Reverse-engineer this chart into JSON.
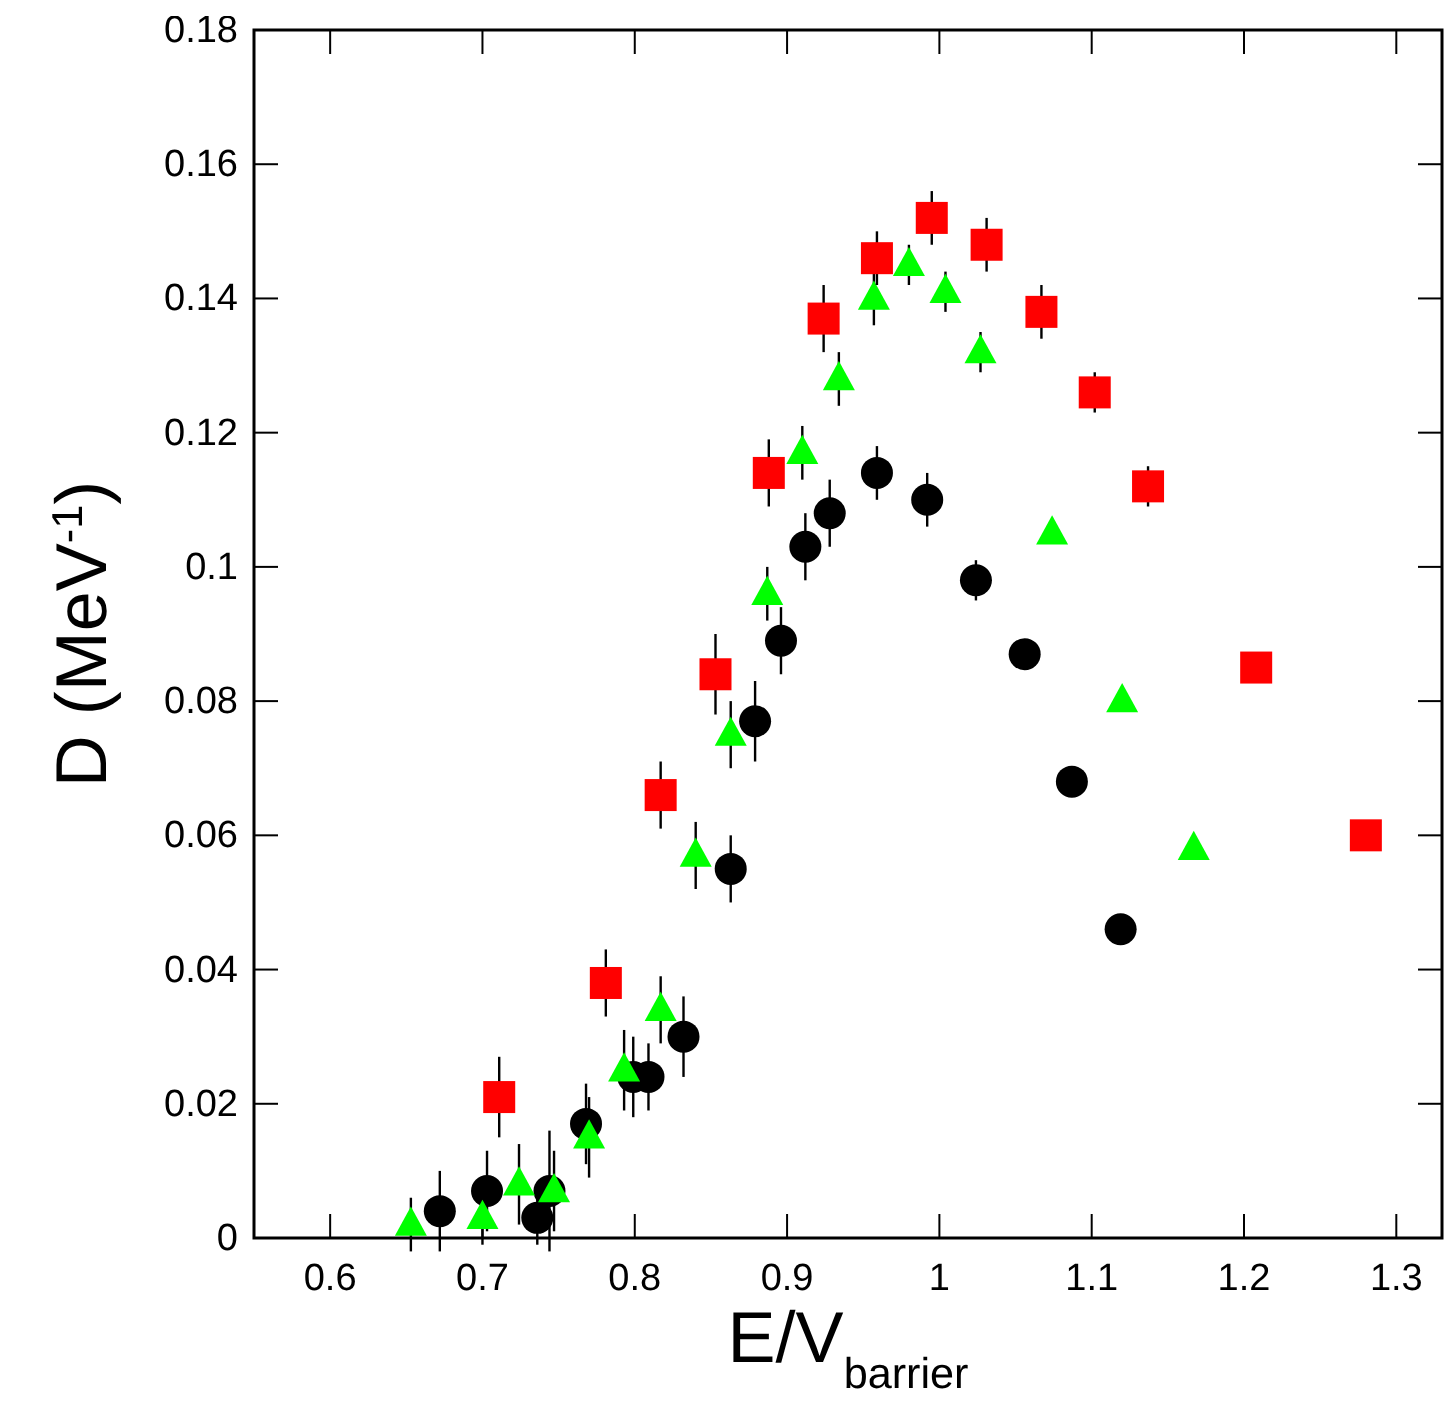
{
  "chart_data": {
    "type": "scatter",
    "xlabel": "E/V$_{barrier}$",
    "ylabel": "D (MeV$^{-1}$)",
    "xlim": [
      0.55,
      1.33
    ],
    "ylim": [
      0,
      0.18
    ],
    "xticks": [
      0.6,
      0.7,
      0.8,
      0.9,
      1,
      1.1,
      1.2,
      1.3
    ],
    "yticks": [
      0,
      0.02,
      0.04,
      0.06,
      0.08,
      0.1,
      0.12,
      0.14,
      0.16,
      0.18
    ],
    "grid": false,
    "series": [
      {
        "color": "#ff0000",
        "marker": "square",
        "x": [
          0.711,
          0.781,
          0.817,
          0.853,
          0.888,
          0.924,
          0.959,
          0.995,
          1.031,
          1.067,
          1.102,
          1.137,
          1.208,
          1.28
        ],
        "values": [
          0.021,
          0.038,
          0.066,
          0.084,
          0.114,
          0.137,
          0.146,
          0.152,
          0.148,
          0.138,
          0.126,
          0.112,
          0.085,
          0.06
        ],
        "errors": [
          0.006,
          0.005,
          0.005,
          0.006,
          0.005,
          0.005,
          0.004,
          0.004,
          0.004,
          0.004,
          0.003,
          0.003,
          null,
          null
        ]
      },
      {
        "color": "#00ff00",
        "marker": "triangle",
        "x": [
          0.653,
          0.7,
          0.724,
          0.747,
          0.77,
          0.793,
          0.817,
          0.84,
          0.863,
          0.887,
          0.91,
          0.934,
          0.957,
          0.98,
          1.004,
          1.027,
          1.074,
          1.12,
          1.167
        ],
        "values": [
          0.002,
          0.003,
          0.008,
          0.007,
          0.015,
          0.025,
          0.034,
          0.057,
          0.075,
          0.096,
          0.117,
          0.128,
          0.14,
          0.145,
          0.141,
          0.132,
          0.105,
          0.08,
          0.058
        ],
        "errors": [
          0.004,
          0.004,
          0.006,
          0.006,
          0.006,
          0.006,
          0.005,
          0.005,
          0.005,
          0.004,
          0.004,
          0.004,
          0.004,
          0.003,
          0.003,
          0.003,
          null,
          null,
          null
        ]
      },
      {
        "color": "#000000",
        "marker": "circle",
        "x": [
          0.672,
          0.703,
          0.736,
          0.744,
          0.768,
          0.799,
          0.809,
          0.832,
          0.863,
          0.879,
          0.896,
          0.912,
          0.928,
          0.959,
          0.992,
          1.024,
          1.056,
          1.087,
          1.119
        ],
        "values": [
          0.004,
          0.007,
          0.003,
          0.007,
          0.017,
          0.024,
          0.024,
          0.03,
          0.055,
          0.077,
          0.089,
          0.103,
          0.108,
          0.114,
          0.11,
          0.098,
          0.087,
          0.068,
          0.046
        ],
        "errors": [
          0.006,
          0.006,
          0.004,
          0.009,
          0.006,
          0.006,
          0.005,
          0.006,
          0.005,
          0.006,
          0.005,
          0.005,
          0.005,
          0.004,
          0.004,
          0.003,
          null,
          null,
          null
        ]
      }
    ]
  }
}
